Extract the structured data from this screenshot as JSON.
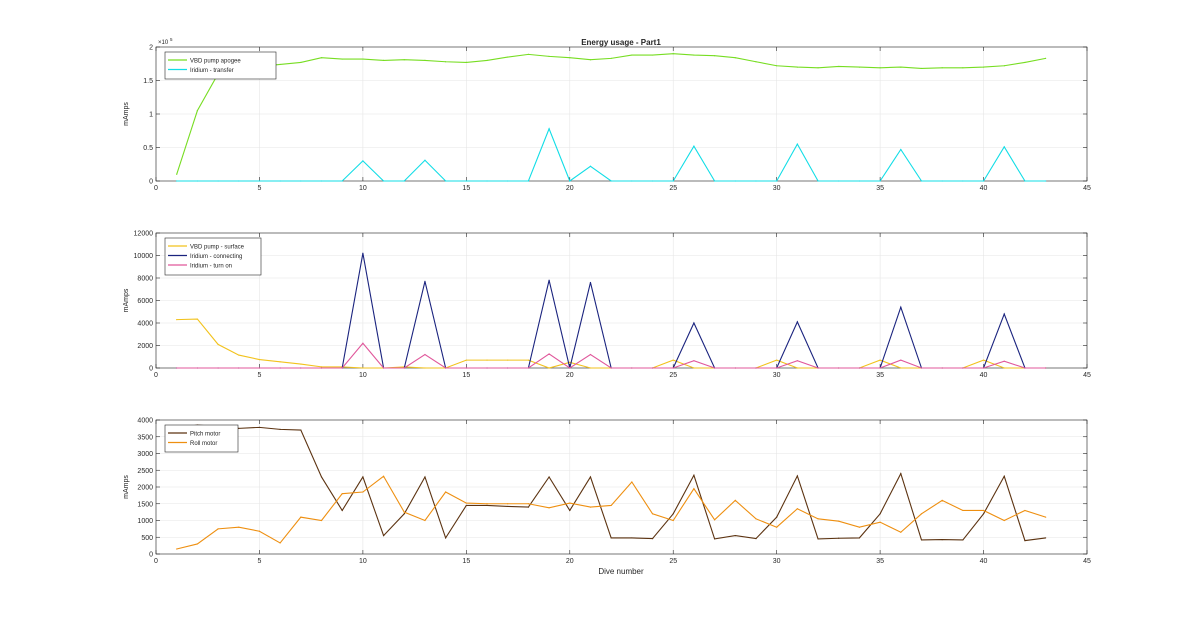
{
  "figure": {
    "title": "Energy usage - Part1",
    "xlabel": "Dive number"
  },
  "chart_data": [
    {
      "type": "line",
      "title": "Energy usage - Part1",
      "xlabel": "",
      "ylabel": "mAmps",
      "xlim": [
        0,
        45
      ],
      "ylim": [
        0,
        200000
      ],
      "xticks": [
        0,
        5,
        10,
        15,
        20,
        25,
        30,
        35,
        40,
        45
      ],
      "yticks": [
        0,
        50000,
        100000,
        150000,
        200000
      ],
      "ytick_labels": [
        "0",
        "0.5",
        "1",
        "1.5",
        "2"
      ],
      "exponent_label": "×10",
      "exponent_power": "5",
      "grid": true,
      "legend_position": "top-left",
      "x": [
        1,
        2,
        3,
        4,
        5,
        6,
        7,
        8,
        9,
        10,
        11,
        12,
        13,
        14,
        15,
        16,
        17,
        18,
        19,
        20,
        21,
        22,
        23,
        24,
        25,
        26,
        27,
        28,
        29,
        30,
        31,
        32,
        33,
        34,
        35,
        36,
        37,
        38,
        39,
        40,
        41,
        42,
        43
      ],
      "series": [
        {
          "name": "VBD pump apogee",
          "color": "#77DD22",
          "values": [
            10000,
            105000,
            160000,
            169000,
            171000,
            174000,
            177000,
            184000,
            182000,
            182000,
            180000,
            181000,
            180000,
            178000,
            177000,
            180000,
            185000,
            189000,
            186000,
            184000,
            181000,
            183000,
            188000,
            188000,
            190000,
            188000,
            187000,
            184000,
            178000,
            172000,
            170000,
            169000,
            171000,
            170000,
            169000,
            170000,
            168000,
            169000,
            169000,
            170000,
            172000,
            177000,
            183000
          ]
        },
        {
          "name": "Iridium - transfer",
          "color": "#11DDE6",
          "values": [
            0,
            0,
            0,
            0,
            0,
            0,
            0,
            0,
            0,
            30000,
            0,
            0,
            31000,
            0,
            0,
            0,
            0,
            0,
            78000,
            0,
            22000,
            0,
            0,
            0,
            0,
            52000,
            0,
            0,
            0,
            0,
            55000,
            0,
            0,
            0,
            0,
            47000,
            0,
            0,
            0,
            0,
            51000,
            0,
            0
          ]
        }
      ]
    },
    {
      "type": "line",
      "title": "",
      "xlabel": "",
      "ylabel": "mAmps",
      "xlim": [
        0,
        45
      ],
      "ylim": [
        0,
        12000
      ],
      "xticks": [
        0,
        5,
        10,
        15,
        20,
        25,
        30,
        35,
        40,
        45
      ],
      "yticks": [
        0,
        2000,
        4000,
        6000,
        8000,
        10000,
        12000
      ],
      "ytick_labels": [
        "0",
        "2000",
        "4000",
        "6000",
        "8000",
        "10000",
        "12000"
      ],
      "grid": true,
      "legend_position": "top-left",
      "x": [
        1,
        2,
        3,
        4,
        5,
        6,
        7,
        8,
        9,
        10,
        11,
        12,
        13,
        14,
        15,
        16,
        17,
        18,
        19,
        20,
        21,
        22,
        23,
        24,
        25,
        26,
        27,
        28,
        29,
        30,
        31,
        32,
        33,
        34,
        35,
        36,
        37,
        38,
        39,
        40,
        41,
        42,
        43
      ],
      "series": [
        {
          "name": "VBD pump - surface",
          "color": "#F2C21C",
          "values": [
            4300,
            4350,
            2100,
            1150,
            750,
            550,
            350,
            100,
            100,
            0,
            0,
            100,
            0,
            0,
            700,
            700,
            700,
            700,
            0,
            500,
            0,
            0,
            0,
            0,
            700,
            0,
            0,
            0,
            0,
            700,
            0,
            0,
            0,
            0,
            700,
            0,
            0,
            0,
            0,
            700,
            0,
            0,
            0
          ]
        },
        {
          "name": "Iridium - connecting",
          "color": "#1A237E",
          "values": [
            0,
            0,
            0,
            0,
            0,
            0,
            0,
            0,
            0,
            10200,
            0,
            0,
            7700,
            0,
            0,
            0,
            0,
            0,
            7800,
            0,
            7600,
            0,
            0,
            0,
            0,
            4000,
            0,
            0,
            0,
            0,
            4100,
            0,
            0,
            0,
            0,
            5400,
            0,
            0,
            0,
            0,
            4800,
            0,
            0
          ]
        },
        {
          "name": "Iridium - turn on",
          "color": "#E0579B",
          "values": [
            0,
            0,
            0,
            0,
            0,
            0,
            0,
            0,
            0,
            2200,
            0,
            0,
            1200,
            0,
            0,
            0,
            0,
            0,
            1250,
            0,
            1200,
            0,
            0,
            0,
            0,
            650,
            0,
            0,
            0,
            0,
            650,
            0,
            0,
            0,
            0,
            700,
            0,
            0,
            0,
            0,
            600,
            0,
            0
          ]
        }
      ]
    },
    {
      "type": "line",
      "title": "",
      "xlabel": "Dive number",
      "ylabel": "mAmps",
      "xlim": [
        0,
        45
      ],
      "ylim": [
        0,
        4000
      ],
      "xticks": [
        0,
        5,
        10,
        15,
        20,
        25,
        30,
        35,
        40,
        45
      ],
      "yticks": [
        0,
        500,
        1000,
        1500,
        2000,
        2500,
        3000,
        3500,
        4000
      ],
      "ytick_labels": [
        "0",
        "500",
        "1000",
        "1500",
        "2000",
        "2500",
        "3000",
        "3500",
        "4000"
      ],
      "grid": true,
      "legend_position": "top-left",
      "x": [
        1,
        2,
        3,
        4,
        5,
        6,
        7,
        8,
        9,
        10,
        11,
        12,
        13,
        14,
        15,
        16,
        17,
        18,
        19,
        20,
        21,
        22,
        23,
        24,
        25,
        26,
        27,
        28,
        29,
        30,
        31,
        32,
        33,
        34,
        35,
        36,
        37,
        38,
        39,
        40,
        41,
        42,
        43
      ],
      "series": [
        {
          "name": "Pitch motor",
          "color": "#5C3311",
          "values": [
            3750,
            3850,
            3800,
            3750,
            3780,
            3720,
            3700,
            2300,
            1300,
            2300,
            550,
            1200,
            2300,
            480,
            1450,
            1450,
            1420,
            1400,
            2300,
            1300,
            2300,
            480,
            480,
            460,
            1200,
            2350,
            450,
            550,
            460,
            1100,
            2330,
            450,
            470,
            480,
            1200,
            2400,
            420,
            430,
            420,
            1200,
            2320,
            400,
            480
          ]
        },
        {
          "name": "Roll motor",
          "color": "#EE8F10",
          "values": [
            150,
            300,
            750,
            800,
            680,
            330,
            1100,
            1000,
            1800,
            1850,
            2320,
            1250,
            1000,
            1850,
            1520,
            1500,
            1500,
            1500,
            1380,
            1520,
            1400,
            1450,
            2150,
            1200,
            1000,
            1950,
            1020,
            1600,
            1050,
            800,
            1350,
            1050,
            980,
            800,
            950,
            650,
            1200,
            1600,
            1300,
            1300,
            1000,
            1300,
            1100
          ]
        }
      ]
    }
  ]
}
